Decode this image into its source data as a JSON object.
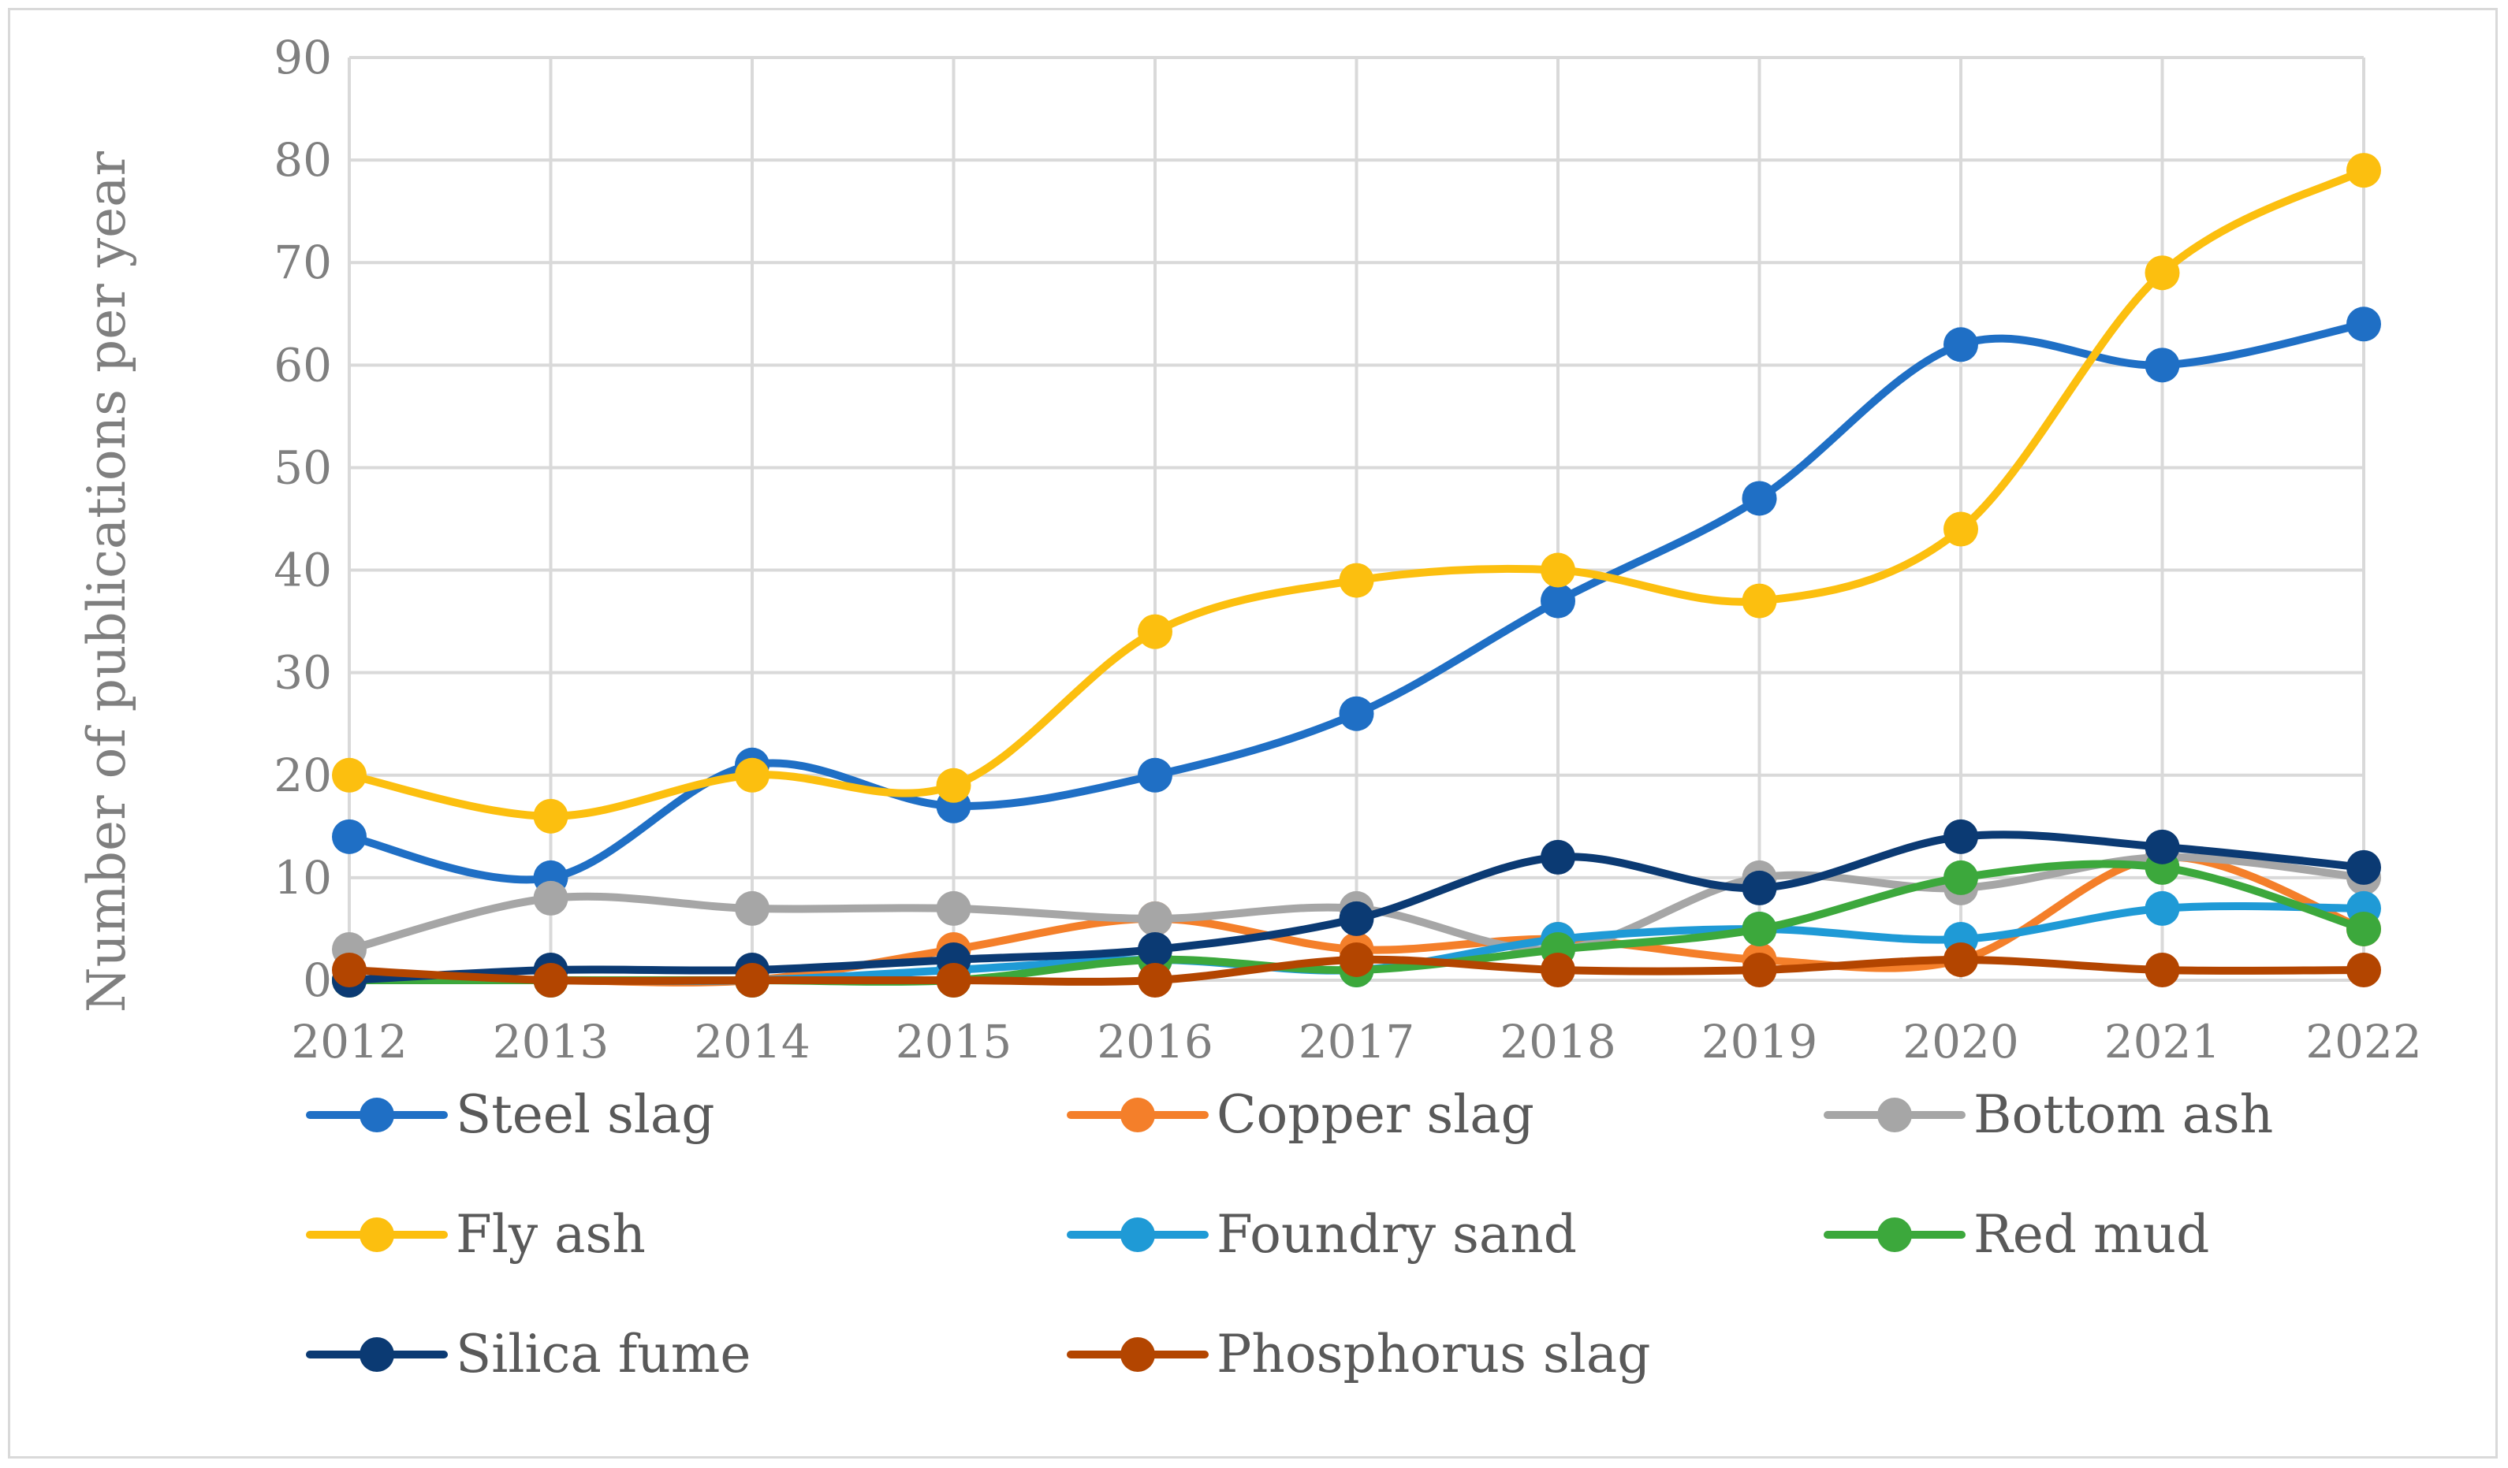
{
  "chart_data": {
    "type": "line",
    "title": "",
    "xlabel": "",
    "ylabel": "Number of publications per year",
    "ylim": [
      0,
      90
    ],
    "yticks": [
      0,
      10,
      20,
      30,
      40,
      50,
      60,
      70,
      80,
      90
    ],
    "grid": true,
    "smooth": true,
    "legend_position": "bottom",
    "categories": [
      "2012",
      "2013",
      "2014",
      "2015",
      "2016",
      "2017",
      "2018",
      "2019",
      "2020",
      "2021",
      "2022"
    ],
    "series": [
      {
        "name": "Steel slag",
        "color": "#1f6fc5",
        "values": [
          14,
          10,
          21,
          17,
          20,
          26,
          37,
          47,
          62,
          60,
          64
        ]
      },
      {
        "name": "Copper slag",
        "color": "#f47f2a",
        "values": [
          0,
          0,
          0,
          3,
          6,
          3,
          4,
          2,
          2,
          12,
          5
        ]
      },
      {
        "name": "Bottom ash",
        "color": "#a6a6a6",
        "values": [
          3,
          8,
          7,
          7,
          6,
          7,
          3,
          10,
          9,
          12,
          10
        ]
      },
      {
        "name": "Fly ash",
        "color": "#fcbf0f",
        "values": [
          20,
          16,
          20,
          19,
          34,
          39,
          40,
          37,
          44,
          69,
          79
        ]
      },
      {
        "name": "Foundry sand",
        "color": "#1f9ad6",
        "values": [
          0,
          0,
          0,
          1,
          2,
          1,
          4,
          5,
          4,
          7,
          7
        ]
      },
      {
        "name": "Red mud",
        "color": "#3ca83c",
        "values": [
          0,
          0,
          0,
          0,
          2,
          1,
          3,
          5,
          10,
          11,
          5
        ]
      },
      {
        "name": "Silica fume",
        "color": "#0b3a73",
        "values": [
          0,
          1,
          1,
          2,
          3,
          6,
          12,
          9,
          14,
          13,
          11
        ]
      },
      {
        "name": "Phosphorus slag",
        "color": "#b34500",
        "values": [
          1,
          0,
          0,
          0,
          0,
          2,
          1,
          1,
          2,
          1,
          1
        ]
      }
    ]
  }
}
